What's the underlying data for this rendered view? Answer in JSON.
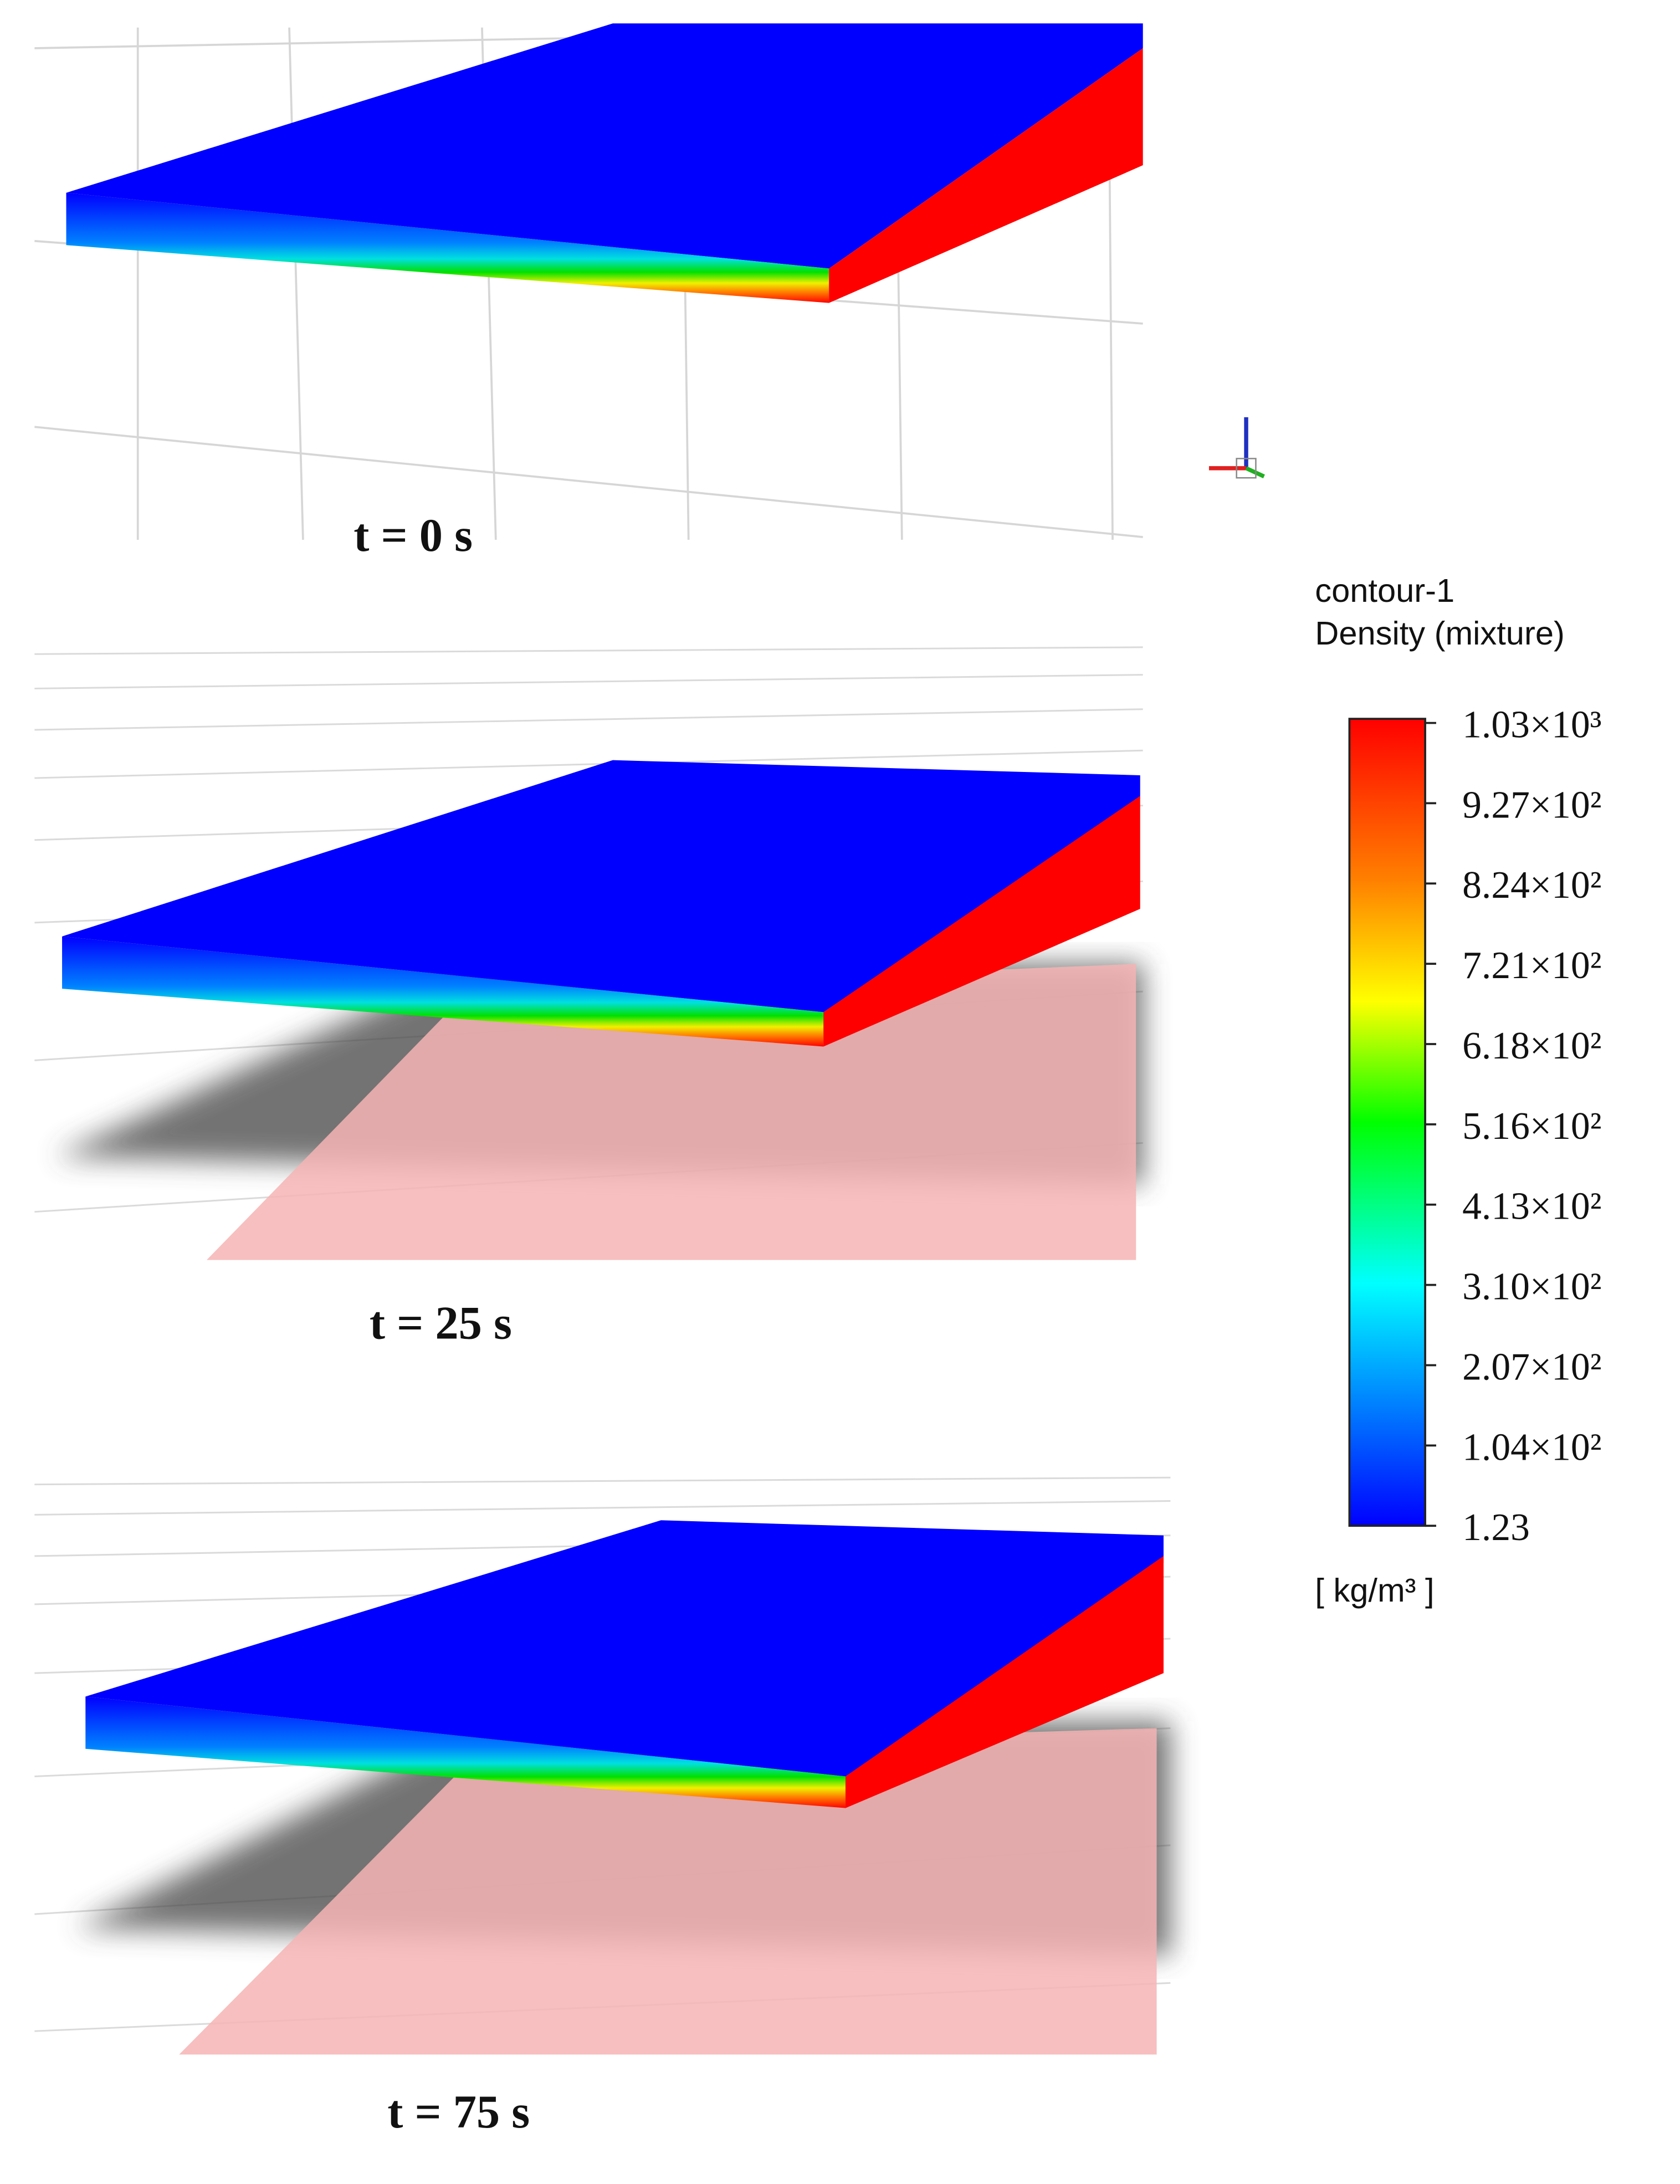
{
  "panels": [
    {
      "label": "t = 0 s"
    },
    {
      "label": "t = 25 s"
    },
    {
      "label": "t = 75 s"
    }
  ],
  "legend": {
    "name": "contour-1",
    "quantity": "Density (mixture)",
    "ticks": [
      "1.03×10³",
      "9.27×10²",
      "8.24×10²",
      "7.21×10²",
      "6.18×10²",
      "5.16×10²",
      "4.13×10²",
      "3.10×10²",
      "2.07×10²",
      "1.04×10²",
      "1.23"
    ],
    "unit": "[ kg/m³ ]"
  }
}
